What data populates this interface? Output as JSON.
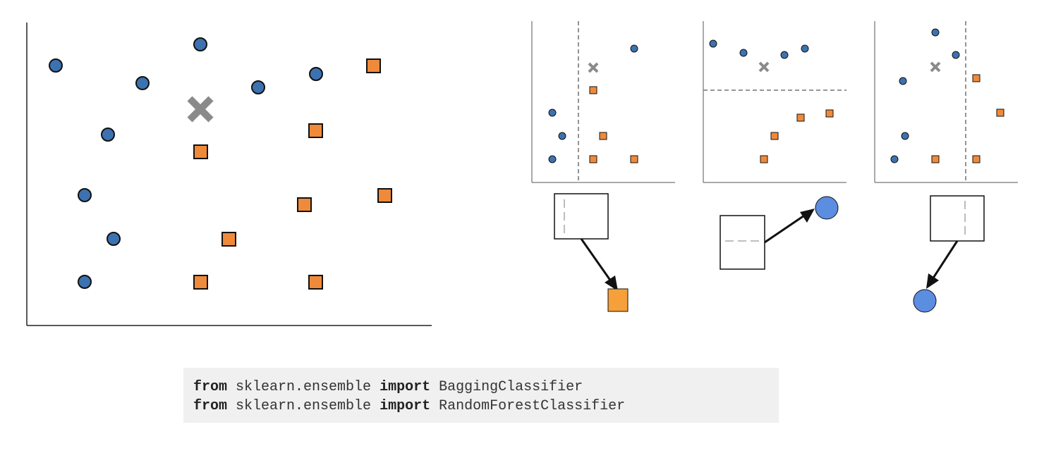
{
  "colors": {
    "class_a_fill": "#3d72b0",
    "class_b_fill": "#ef8a3a",
    "query_marker": "#8a8a8a",
    "leaf_circle_fill": "#5b8de0",
    "leaf_square_fill": "#f5a03a",
    "split_line": "#888888",
    "code_background": "#f0f0f0"
  },
  "icons": {
    "class_a": "circle",
    "class_b": "square",
    "query_point": "x-cross"
  },
  "code": {
    "lines": [
      {
        "kw1": "from",
        "module": "sklearn.ensemble",
        "kw2": "import",
        "name": "BaggingClassifier"
      },
      {
        "kw1": "from",
        "module": "sklearn.ensemble",
        "kw2": "import",
        "name": "RandomForestClassifier"
      }
    ]
  }
}
